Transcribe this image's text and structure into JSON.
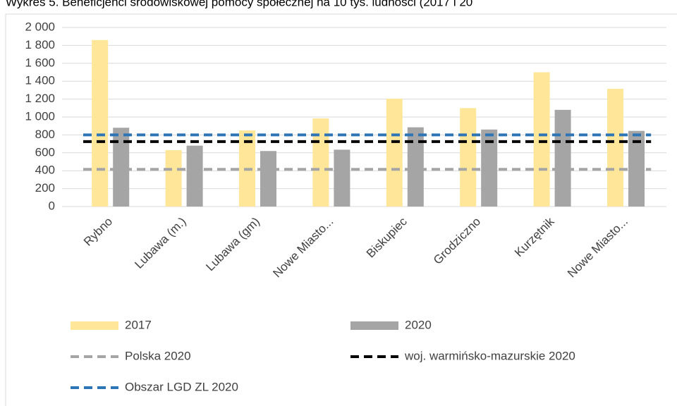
{
  "chart_data": {
    "type": "bar",
    "title": "Wykres 5. Beneficjenci środowiskowej pomocy społecznej na 10 tys. ludności (2017 i 20",
    "categories": [
      "Rybno",
      "Lubawa (m.)",
      "Lubawa  (gm)",
      "Nowe Miasto...",
      "Biskupiec",
      "Grodziczno",
      "Kurzętnik",
      "Nowe Miasto..."
    ],
    "series": [
      {
        "name": "2017",
        "color": "#ffe699",
        "values": [
          1860,
          630,
          850,
          985,
          1205,
          1100,
          1500,
          1315
        ]
      },
      {
        "name": "2020",
        "color": "#a5a5a5",
        "values": [
          880,
          680,
          620,
          635,
          885,
          860,
          1080,
          845
        ]
      }
    ],
    "reference_lines": [
      {
        "name": "Polska 2020",
        "color": "#a5a5a5",
        "value": 415
      },
      {
        "name": "woj. warmińsko-mazurskie 2020",
        "color": "#000000",
        "value": 725
      },
      {
        "name": "Obszar LGD ZL 2020",
        "color": "#2e75b6",
        "value": 800
      }
    ],
    "ylim": [
      0,
      2000
    ],
    "yticks": [
      0,
      200,
      400,
      600,
      800,
      {
        "value": 1000,
        "label": "1 000"
      },
      {
        "value": 1200,
        "label": "1 200"
      },
      {
        "value": 1400,
        "label": "1 400"
      },
      {
        "value": 1600,
        "label": "1 600"
      },
      {
        "value": 1800,
        "label": "1 800"
      },
      {
        "value": 2000,
        "label": "2 000"
      }
    ],
    "grid": true
  }
}
